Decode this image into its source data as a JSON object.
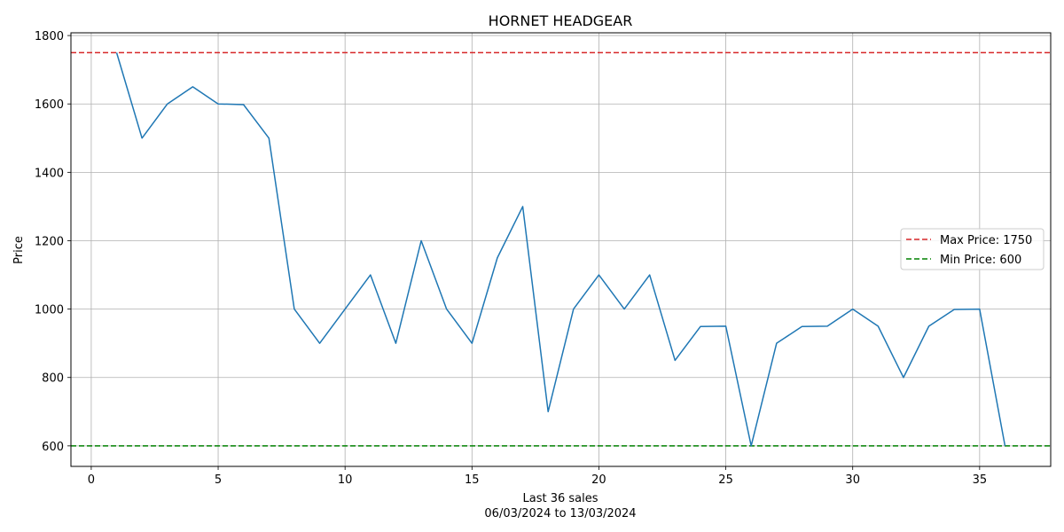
{
  "chart_data": {
    "type": "line",
    "title": "HORNET HEADGEAR",
    "xlabel": "Last 36 sales",
    "xlabel_sub": "06/03/2024 to 13/03/2024",
    "ylabel": "Price",
    "xlim": [
      -0.8,
      37.8
    ],
    "ylim": [
      540,
      1808
    ],
    "x_ticks": [
      0,
      5,
      10,
      15,
      20,
      25,
      30,
      35
    ],
    "y_ticks": [
      600,
      800,
      1000,
      1200,
      1400,
      1600,
      1800
    ],
    "grid": true,
    "legend_position": "center-right",
    "series": [
      {
        "color": "#1f77b4",
        "x": [
          1,
          2,
          3,
          4,
          5,
          6,
          7,
          8,
          9,
          10,
          11,
          12,
          13,
          14,
          15,
          16,
          17,
          18,
          19,
          20,
          21,
          22,
          23,
          24,
          25,
          26,
          27,
          28,
          29,
          30,
          31,
          32,
          33,
          34,
          35,
          36
        ],
        "y": [
          1750,
          1500,
          1600,
          1650,
          1600,
          1598,
          1500,
          1000,
          900,
          1000,
          1100,
          900,
          1200,
          1000,
          900,
          1150,
          1300,
          700,
          1000,
          1100,
          1000,
          1100,
          850,
          949,
          950,
          600,
          900,
          949,
          950,
          1000,
          950,
          800,
          950,
          999,
          1000,
          600
        ]
      }
    ],
    "reference_lines": [
      {
        "label": "Max Price: 1750",
        "value": 1750,
        "color": "#d62728"
      },
      {
        "label": "Min Price: 600",
        "value": 600,
        "color": "#008000"
      }
    ]
  }
}
